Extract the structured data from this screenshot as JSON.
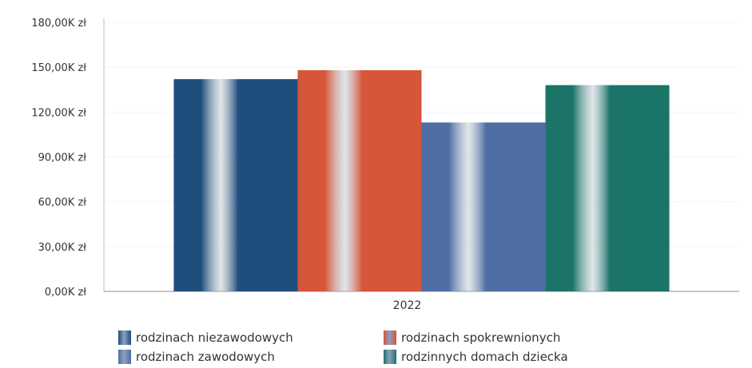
{
  "chart_data": {
    "type": "bar",
    "categories": [
      "2022"
    ],
    "series": [
      {
        "name": "rodzinach niezawodowych",
        "values": [
          142000
        ],
        "color": "#1f4e7c"
      },
      {
        "name": "rodzinach spokrewnionych",
        "values": [
          148000
        ],
        "color": "#d6563a"
      },
      {
        "name": "rodzinach zawodowych",
        "values": [
          113000
        ],
        "color": "#4f6ea4"
      },
      {
        "name": "rodzinnych domach dziecka",
        "values": [
          138000
        ],
        "color": "#1b7468"
      }
    ],
    "yticks": [
      "0,00K zł",
      "30,00K zł",
      "60,00K zł",
      "90,00K zł",
      "120,00K zł",
      "150,00K zł",
      "180,00K zł"
    ],
    "ytick_values": [
      0,
      30000,
      60000,
      90000,
      120000,
      150000,
      180000
    ],
    "ylim": [
      0,
      180000
    ],
    "grid": true,
    "legend_position": "bottom"
  },
  "legend": {
    "items": [
      {
        "label": "rodzinach niezawodowych",
        "color": "#1f4e7c"
      },
      {
        "label": "rodzinach spokrewnionych",
        "color": "#d6563a"
      },
      {
        "label": "rodzinach zawodowych",
        "color": "#4f6ea4"
      },
      {
        "label": "rodzinnych domach dziecka",
        "color": "#1b7468"
      }
    ]
  }
}
